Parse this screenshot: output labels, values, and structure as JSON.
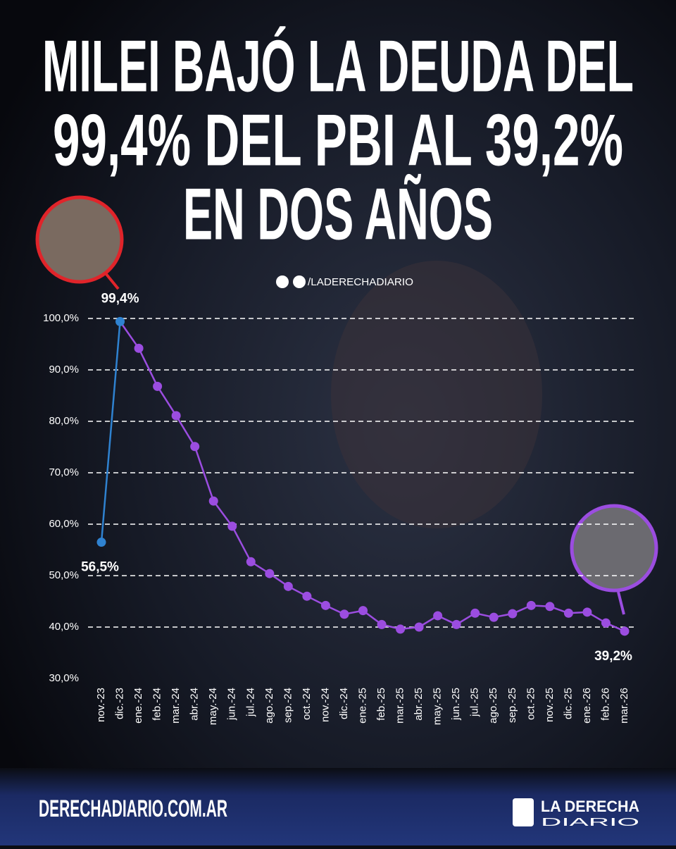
{
  "chart_data": {
    "type": "line",
    "title": [
      "MILEI BAJÓ LA DEUDA DEL",
      "99,4% DEL PBI AL 39,2%",
      "EN DOS AÑOS"
    ],
    "handle": "/LADERECHADIARIO",
    "categories": [
      "nov.-23",
      "dic.-23",
      "ene.-24",
      "feb.-24",
      "mar.-24",
      "abr.-24",
      "may.-24",
      "jun.-24",
      "jul.-24",
      "ago.-24",
      "sep.-24",
      "oct.-24",
      "nov.-24",
      "dic.-24",
      "ene.-25",
      "feb.-25",
      "mar.-25",
      "abr.-25",
      "may.-25",
      "jun.-25",
      "jul.-25",
      "ago.-25",
      "sep.-25",
      "oct.-25",
      "nov.-25",
      "dic.-25",
      "ene.-26",
      "feb.-26",
      "mar.-26"
    ],
    "values": [
      56.5,
      99.4,
      94.2,
      86.8,
      81.1,
      75.1,
      64.5,
      59.6,
      52.7,
      50.4,
      47.9,
      46.0,
      44.2,
      42.5,
      43.2,
      40.5,
      39.6,
      40.0,
      42.2,
      40.5,
      42.7,
      41.9,
      42.6,
      44.2,
      44.0,
      42.7,
      42.9,
      40.8,
      39.2
    ],
    "value_labels": [
      "56,5%",
      "99,4%",
      null,
      null,
      null,
      null,
      null,
      null,
      null,
      null,
      null,
      null,
      null,
      null,
      null,
      null,
      null,
      null,
      null,
      null,
      null,
      null,
      null,
      null,
      null,
      null,
      null,
      null,
      "39,2%"
    ],
    "color": "#9b4de0",
    "start_color": "#2f82d0",
    "ylim": [
      30,
      100
    ],
    "yticks": [
      {
        "value": 30,
        "label": "30,0%"
      },
      {
        "value": 40,
        "label": "40,0%"
      },
      {
        "value": 50,
        "label": "50,0%"
      },
      {
        "value": 60,
        "label": "60,0%"
      },
      {
        "value": 70,
        "label": "70,0%"
      },
      {
        "value": 80,
        "label": "80,0%"
      },
      {
        "value": 90,
        "label": "90,0%"
      },
      {
        "value": 100,
        "label": "100,0%"
      }
    ],
    "grid": true
  },
  "footer": {
    "url": "DERECHADIARIO.COM.AR",
    "logo": [
      "LA DERECHA",
      "DIARIO"
    ]
  }
}
